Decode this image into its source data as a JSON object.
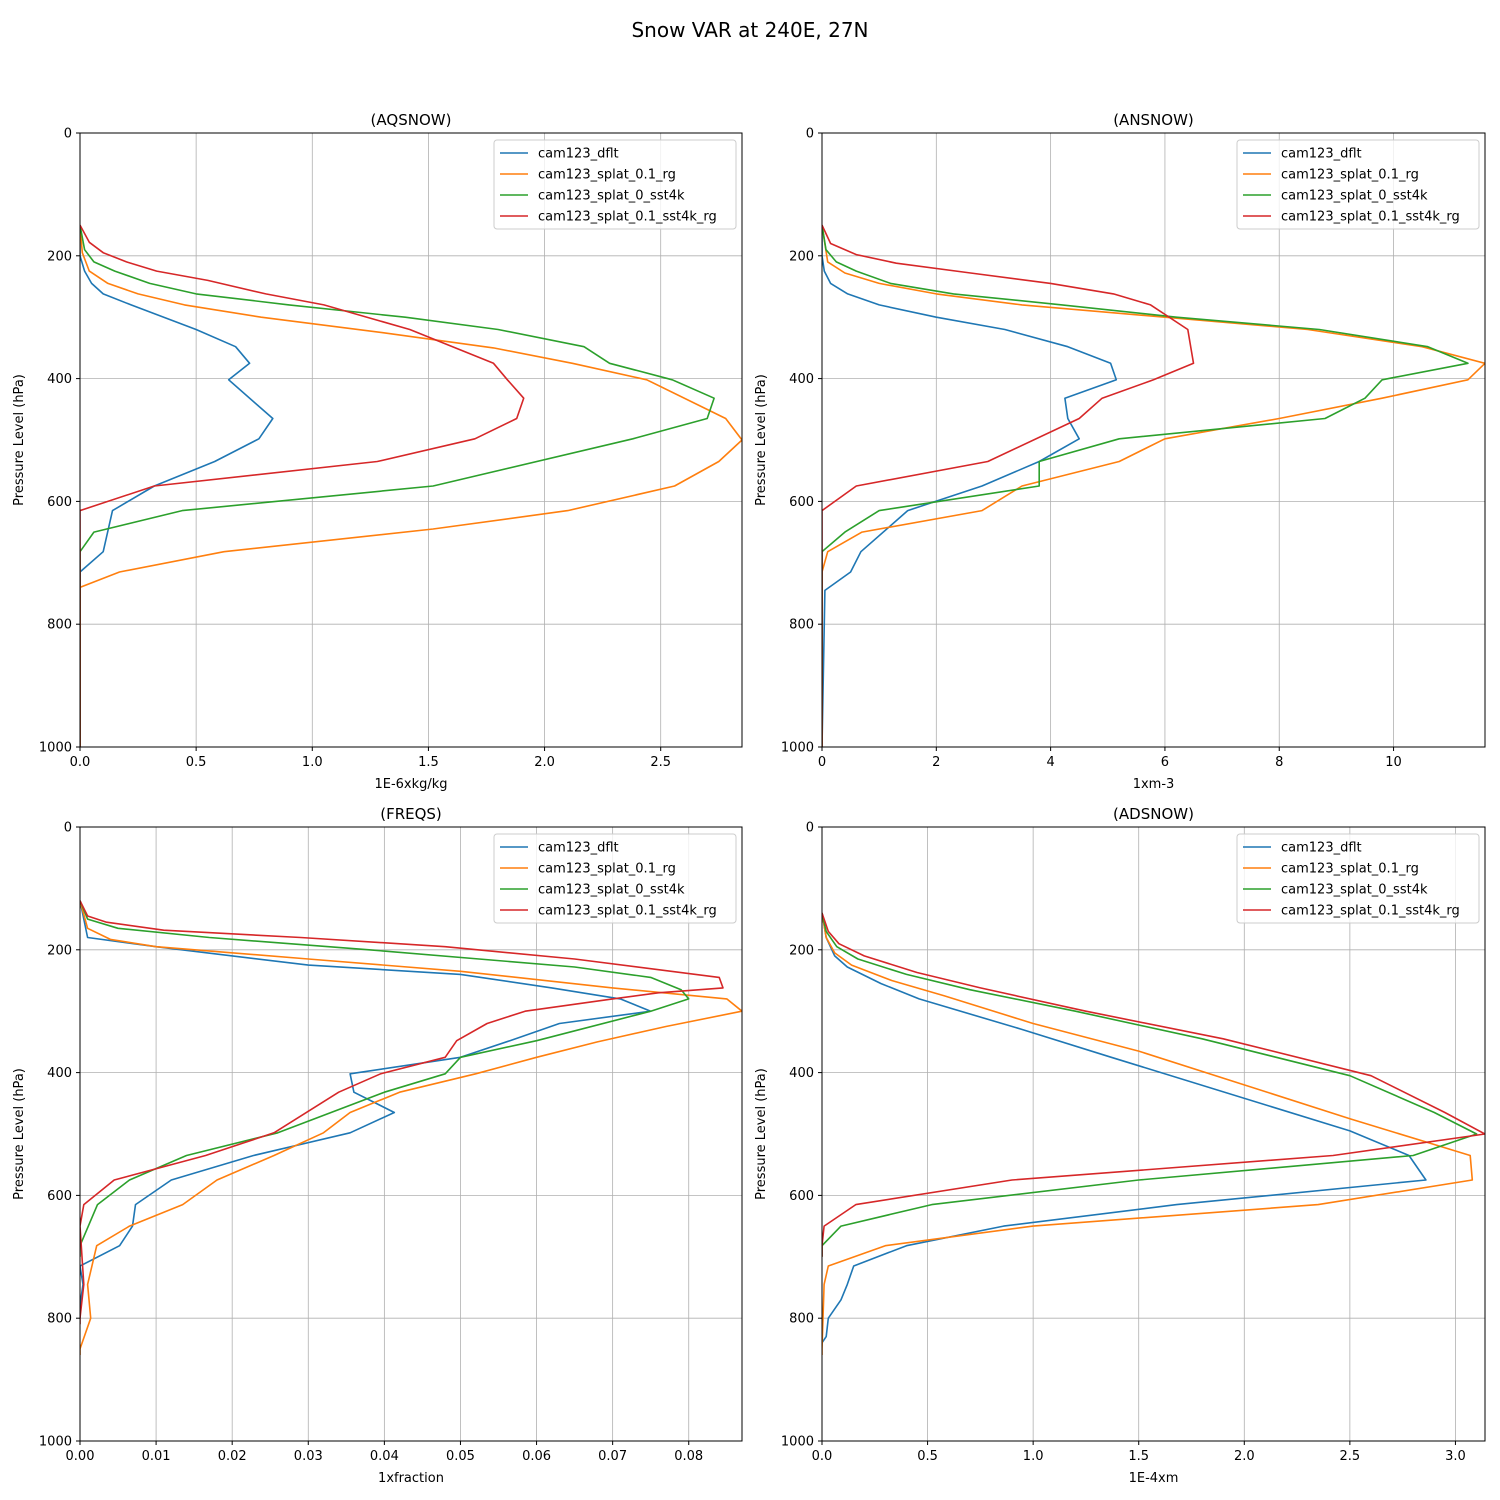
{
  "figure": {
    "title": "Snow VAR at 240E, 27N"
  },
  "colors": {
    "cam123_dflt": "#1f77b4",
    "cam123_splat_0.1_rg": "#ff7f0e",
    "cam123_splat_0_sst4k": "#2ca02c",
    "cam123_splat_0.1_sst4k_rg": "#d62728"
  },
  "chart_data": [
    {
      "type": "line",
      "title": "(AQSNOW)",
      "xlabel": "1E-6xkg/kg",
      "ylabel": "Pressure Level (hPa)",
      "xlim": [
        0,
        2.85
      ],
      "ylim": [
        1000,
        0
      ],
      "xticks": [
        0.0,
        0.5,
        1.0,
        1.5,
        2.0,
        2.5
      ],
      "xtick_labels": [
        "0.0",
        "0.5",
        "1.0",
        "1.5",
        "2.0",
        "2.5"
      ],
      "yticks": [
        0,
        200,
        400,
        600,
        800,
        1000
      ],
      "ytick_labels": [
        "0",
        "200",
        "400",
        "600",
        "800",
        "1000"
      ],
      "grid": true,
      "legend_position": "upper-right",
      "series": [
        {
          "name": "cam123_dflt",
          "x": [
            0,
            0,
            0.02,
            0.05,
            0.1,
            0.22,
            0.5,
            0.67,
            0.73,
            0.64,
            0.83,
            0.77,
            0.58,
            0.32,
            0.14,
            0.1,
            0,
            0
          ],
          "y": [
            150,
            200,
            225,
            245,
            262,
            280,
            320,
            348,
            375,
            402,
            465,
            498,
            535,
            575,
            615,
            682,
            715,
            1000
          ]
        },
        {
          "name": "cam123_splat_0.1_rg",
          "x": [
            0,
            0.01,
            0.04,
            0.12,
            0.25,
            0.45,
            0.78,
            1.3,
            1.78,
            2.12,
            2.44,
            2.78,
            2.85,
            2.75,
            2.56,
            2.1,
            1.52,
            0.62,
            0.17,
            0,
            0
          ],
          "y": [
            150,
            195,
            225,
            245,
            262,
            280,
            300,
            325,
            350,
            375,
            402,
            465,
            500,
            535,
            575,
            615,
            645,
            682,
            715,
            740,
            1000
          ]
        },
        {
          "name": "cam123_splat_0_sst4k",
          "x": [
            0,
            0.02,
            0.06,
            0.15,
            0.3,
            0.5,
            0.9,
            1.4,
            1.8,
            2.17,
            2.28,
            2.55,
            2.73,
            2.7,
            2.38,
            1.52,
            0.44,
            0.06,
            0,
            0
          ],
          "y": [
            150,
            190,
            210,
            225,
            245,
            262,
            280,
            300,
            320,
            348,
            375,
            402,
            432,
            465,
            498,
            575,
            615,
            650,
            682,
            1000
          ]
        },
        {
          "name": "cam123_splat_0.1_sst4k_rg",
          "x": [
            0,
            0.04,
            0.1,
            0.2,
            0.33,
            0.55,
            0.8,
            1.05,
            1.42,
            1.78,
            1.84,
            1.91,
            1.88,
            1.7,
            1.28,
            0.32,
            0,
            0
          ],
          "y": [
            150,
            178,
            195,
            210,
            225,
            240,
            262,
            280,
            320,
            375,
            402,
            432,
            465,
            498,
            535,
            575,
            615,
            1000
          ]
        }
      ]
    },
    {
      "type": "line",
      "title": "(ANSNOW)",
      "xlabel": "1xm-3",
      "ylabel": "Pressure Level (hPa)",
      "xlim": [
        0,
        11.6
      ],
      "ylim": [
        1000,
        0
      ],
      "xticks": [
        0,
        2,
        4,
        6,
        8,
        10
      ],
      "xtick_labels": [
        "0",
        "2",
        "4",
        "6",
        "8",
        "10"
      ],
      "yticks": [
        0,
        200,
        400,
        600,
        800,
        1000
      ],
      "ytick_labels": [
        "0",
        "200",
        "400",
        "600",
        "800",
        "1000"
      ],
      "grid": true,
      "legend_position": "upper-right",
      "series": [
        {
          "name": "cam123_dflt",
          "x": [
            0,
            0,
            0.04,
            0.15,
            0.45,
            1.0,
            2.0,
            3.2,
            4.3,
            5.05,
            5.15,
            4.25,
            4.3,
            4.5,
            3.8,
            2.8,
            1.5,
            0.68,
            0.5,
            0.05,
            0
          ],
          "y": [
            150,
            200,
            225,
            245,
            262,
            280,
            300,
            320,
            348,
            375,
            402,
            432,
            465,
            498,
            535,
            575,
            615,
            682,
            715,
            745,
            1000
          ]
        },
        {
          "name": "cam123_splat_0.1_rg",
          "x": [
            0,
            0.1,
            0.4,
            1.0,
            2.0,
            3.5,
            6.0,
            8.5,
            10.5,
            11.6,
            11.3,
            9.8,
            8.0,
            6.0,
            5.2,
            3.5,
            2.8,
            0.7,
            0.1,
            0,
            0
          ],
          "y": [
            150,
            210,
            228,
            245,
            262,
            280,
            300,
            320,
            348,
            375,
            402,
            432,
            465,
            498,
            535,
            575,
            615,
            650,
            682,
            715,
            1000
          ]
        },
        {
          "name": "cam123_splat_0_sst4k",
          "x": [
            0,
            0.07,
            0.25,
            0.6,
            1.2,
            2.3,
            4.2,
            6.2,
            8.7,
            10.6,
            11.3,
            9.8,
            9.5,
            8.8,
            5.2,
            3.8,
            3.8,
            1.0,
            0.4,
            0,
            0
          ],
          "y": [
            150,
            190,
            210,
            225,
            245,
            262,
            280,
            300,
            320,
            348,
            375,
            402,
            432,
            465,
            498,
            535,
            575,
            615,
            650,
            682,
            1000
          ]
        },
        {
          "name": "cam123_splat_0.1_sst4k_rg",
          "x": [
            0,
            0.15,
            0.6,
            1.3,
            2.6,
            4.0,
            5.1,
            5.75,
            6.4,
            6.45,
            6.5,
            5.8,
            4.9,
            4.5,
            2.9,
            0.6,
            0,
            0
          ],
          "y": [
            150,
            180,
            198,
            212,
            228,
            245,
            262,
            280,
            320,
            348,
            375,
            402,
            432,
            465,
            535,
            575,
            615,
            1000
          ]
        }
      ]
    },
    {
      "type": "line",
      "title": "(FREQS)",
      "xlabel": "1xfraction",
      "ylabel": "Pressure Level (hPa)",
      "xlim": [
        0,
        0.087
      ],
      "ylim": [
        1000,
        0
      ],
      "xticks": [
        0.0,
        0.01,
        0.02,
        0.03,
        0.04,
        0.05,
        0.06,
        0.07,
        0.08
      ],
      "xtick_labels": [
        "0.00",
        "0.01",
        "0.02",
        "0.03",
        "0.04",
        "0.05",
        "0.06",
        "0.07",
        "0.08"
      ],
      "yticks": [
        0,
        200,
        400,
        600,
        800,
        1000
      ],
      "ytick_labels": [
        "0",
        "200",
        "400",
        "600",
        "800",
        "1000"
      ],
      "grid": true,
      "legend_position": "upper-right",
      "series": [
        {
          "name": "cam123_dflt",
          "x": [
            0,
            0.001,
            0.01,
            0.03,
            0.05,
            0.062,
            0.071,
            0.075,
            0.063,
            0.0565,
            0.05,
            0.0355,
            0.036,
            0.0413,
            0.0355,
            0.0228,
            0.012,
            0.0073,
            0.0069,
            0.0052,
            0,
            0.0004,
            0.0001,
            0
          ],
          "y": [
            120,
            180,
            195,
            225,
            240,
            262,
            280,
            300,
            320,
            348,
            375,
            402,
            432,
            465,
            498,
            535,
            575,
            615,
            650,
            682,
            715,
            745,
            770,
            800
          ]
        },
        {
          "name": "cam123_splat_0.1_rg",
          "x": [
            0,
            0.001,
            0.004,
            0.01,
            0.03,
            0.05,
            0.07,
            0.085,
            0.087,
            0.077,
            0.068,
            0.06,
            0.052,
            0.042,
            0.0355,
            0.032,
            0.0255,
            0.018,
            0.0135,
            0.0065,
            0.0022,
            0.001,
            0.0014,
            0,
            0
          ],
          "y": [
            120,
            165,
            183,
            195,
            215,
            235,
            262,
            280,
            300,
            325,
            350,
            375,
            402,
            432,
            465,
            498,
            535,
            575,
            615,
            650,
            682,
            745,
            800,
            850,
            860
          ]
        },
        {
          "name": "cam123_splat_0_sst4k",
          "x": [
            0,
            0.001,
            0.005,
            0.017,
            0.038,
            0.065,
            0.075,
            0.079,
            0.08,
            0.075,
            0.06,
            0.05,
            0.048,
            0.04,
            0.026,
            0.014,
            0.0065,
            0.0023,
            0,
            0
          ],
          "y": [
            120,
            150,
            165,
            180,
            200,
            228,
            245,
            265,
            280,
            300,
            348,
            375,
            402,
            432,
            498,
            535,
            575,
            615,
            682,
            700
          ]
        },
        {
          "name": "cam123_splat_0.1_sst4k_rg",
          "x": [
            0,
            0.001,
            0.0035,
            0.011,
            0.029,
            0.048,
            0.065,
            0.084,
            0.0845,
            0.076,
            0.07,
            0.0585,
            0.0535,
            0.0495,
            0.048,
            0.0395,
            0.034,
            0.0255,
            0.0165,
            0.0045,
            0.0005,
            0,
            0.0005,
            0,
            0
          ],
          "y": [
            120,
            145,
            155,
            168,
            180,
            195,
            215,
            245,
            262,
            270,
            280,
            300,
            320,
            348,
            375,
            402,
            432,
            498,
            535,
            575,
            615,
            650,
            745,
            800,
            810
          ]
        }
      ]
    },
    {
      "type": "line",
      "title": "(ADSNOW)",
      "xlabel": "1E-4xm",
      "ylabel": "Pressure Level (hPa)",
      "xlim": [
        0,
        3.14
      ],
      "ylim": [
        1000,
        0
      ],
      "xticks": [
        0.0,
        0.5,
        1.0,
        1.5,
        2.0,
        2.5,
        3.0
      ],
      "xtick_labels": [
        "0.0",
        "0.5",
        "1.0",
        "1.5",
        "2.0",
        "2.5",
        "3.0"
      ],
      "yticks": [
        0,
        200,
        400,
        600,
        800,
        1000
      ],
      "ytick_labels": [
        "0",
        "200",
        "400",
        "600",
        "800",
        "1000"
      ],
      "grid": true,
      "legend_position": "upper-right",
      "series": [
        {
          "name": "cam123_dflt",
          "x": [
            0,
            0.02,
            0.06,
            0.12,
            0.28,
            0.46,
            0.95,
            1.37,
            2.5,
            2.78,
            2.86,
            1.68,
            0.86,
            0.4,
            0.15,
            0.12,
            0.09,
            0.03,
            0.02,
            0
          ],
          "y": [
            140,
            180,
            210,
            228,
            255,
            280,
            330,
            375,
            495,
            535,
            575,
            615,
            650,
            682,
            715,
            745,
            770,
            800,
            830,
            840
          ]
        },
        {
          "name": "cam123_splat_0.1_rg",
          "x": [
            0,
            0.02,
            0.06,
            0.14,
            0.33,
            0.58,
            1.0,
            1.5,
            2.5,
            3.07,
            3.08,
            2.35,
            1.0,
            0.3,
            0.03,
            0.01,
            0,
            0
          ],
          "y": [
            140,
            180,
            205,
            225,
            250,
            275,
            320,
            365,
            475,
            535,
            575,
            615,
            650,
            682,
            715,
            745,
            850,
            860
          ]
        },
        {
          "name": "cam123_splat_0_sst4k",
          "x": [
            0,
            0.02,
            0.07,
            0.17,
            0.4,
            0.7,
            1.2,
            1.8,
            2.5,
            2.9,
            3.1,
            2.8,
            1.5,
            0.52,
            0.09,
            0,
            0
          ],
          "y": [
            140,
            170,
            195,
            215,
            240,
            265,
            300,
            345,
            405,
            465,
            500,
            535,
            575,
            615,
            650,
            682,
            700
          ]
        },
        {
          "name": "cam123_splat_0.1_sst4k_rg",
          "x": [
            0,
            0.03,
            0.08,
            0.2,
            0.45,
            0.75,
            1.25,
            1.9,
            2.6,
            2.95,
            3.14,
            2.42,
            0.9,
            0.16,
            0.01,
            0,
            0
          ],
          "y": [
            140,
            170,
            190,
            210,
            237,
            262,
            300,
            345,
            405,
            465,
            500,
            535,
            575,
            615,
            650,
            682,
            700
          ]
        }
      ]
    }
  ]
}
